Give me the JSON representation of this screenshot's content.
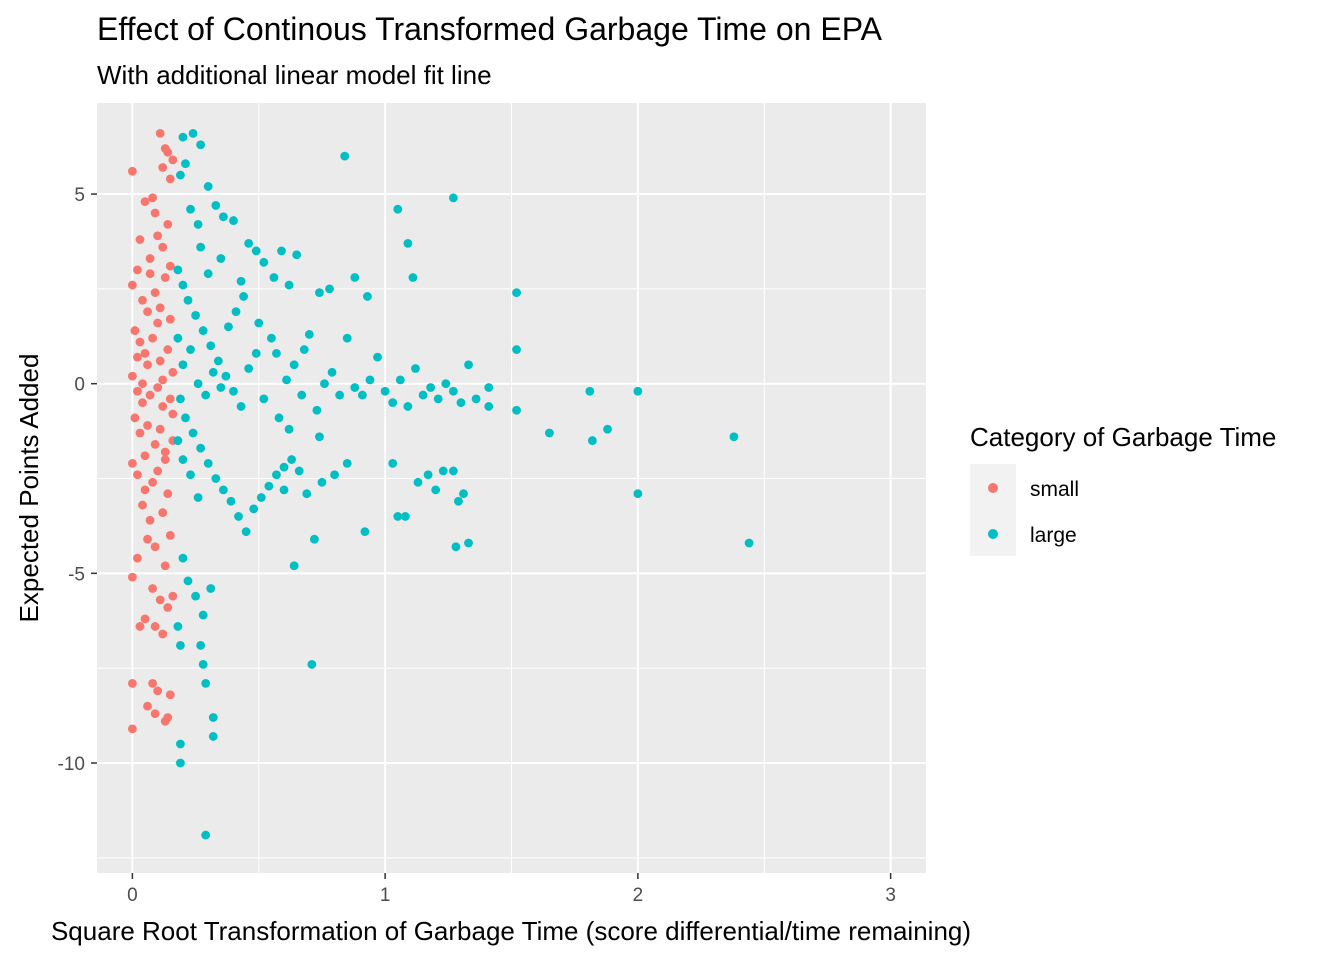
{
  "chart_data": {
    "type": "scatter",
    "title": "Effect of Continous Transformed Garbage Time on EPA",
    "subtitle": "With additional linear model fit line",
    "xlabel": "Square Root Transformation of Garbage Time (score differential/time remaining)",
    "ylabel": "Expected Points Added",
    "xlim": [
      -0.14,
      3.14
    ],
    "ylim": [
      -12.9,
      7.4
    ],
    "x_ticks": [
      0,
      1,
      2,
      3
    ],
    "x_tick_labels": [
      "0",
      "1",
      "2",
      "3"
    ],
    "y_ticks": [
      5,
      0,
      -5,
      -10
    ],
    "y_tick_labels": [
      "5",
      "0",
      "-5",
      "-10"
    ],
    "grid": true,
    "background": "#EBEBEB",
    "legend": {
      "title": "Category of Garbage Time",
      "position": "right",
      "entries": [
        {
          "label": "small",
          "color": "#F8766D"
        },
        {
          "label": "large",
          "color": "#00BFC4"
        }
      ]
    },
    "series": [
      {
        "name": "small",
        "color": "#F8766D",
        "points": [
          [
            0.0,
            5.6
          ],
          [
            0.05,
            4.8
          ],
          [
            0.09,
            4.5
          ],
          [
            0.11,
            6.6
          ],
          [
            0.13,
            6.2
          ],
          [
            0.14,
            6.1
          ],
          [
            0.12,
            5.7
          ],
          [
            0.16,
            5.9
          ],
          [
            0.15,
            5.4
          ],
          [
            0.08,
            4.9
          ],
          [
            0.03,
            3.8
          ],
          [
            0.07,
            3.3
          ],
          [
            0.02,
            3.0
          ],
          [
            0.1,
            3.9
          ],
          [
            0.14,
            4.2
          ],
          [
            0.12,
            3.6
          ],
          [
            0.0,
            2.6
          ],
          [
            0.04,
            2.2
          ],
          [
            0.06,
            1.9
          ],
          [
            0.09,
            2.4
          ],
          [
            0.13,
            2.8
          ],
          [
            0.15,
            1.7
          ],
          [
            0.01,
            1.4
          ],
          [
            0.03,
            1.1
          ],
          [
            0.05,
            0.8
          ],
          [
            0.08,
            1.2
          ],
          [
            0.11,
            0.6
          ],
          [
            0.14,
            0.9
          ],
          [
            0.16,
            0.3
          ],
          [
            0.0,
            0.2
          ],
          [
            0.02,
            -0.2
          ],
          [
            0.04,
            -0.5
          ],
          [
            0.07,
            -0.3
          ],
          [
            0.1,
            -0.1
          ],
          [
            0.12,
            -0.6
          ],
          [
            0.15,
            -0.4
          ],
          [
            0.01,
            -0.9
          ],
          [
            0.03,
            -1.3
          ],
          [
            0.06,
            -1.1
          ],
          [
            0.09,
            -1.6
          ],
          [
            0.11,
            -1.2
          ],
          [
            0.13,
            -1.8
          ],
          [
            0.16,
            -1.5
          ],
          [
            0.0,
            -2.1
          ],
          [
            0.02,
            -2.4
          ],
          [
            0.05,
            -1.9
          ],
          [
            0.08,
            -2.6
          ],
          [
            0.1,
            -2.3
          ],
          [
            0.14,
            -2.9
          ],
          [
            0.04,
            -3.2
          ],
          [
            0.07,
            -3.6
          ],
          [
            0.12,
            -3.4
          ],
          [
            0.15,
            -4.0
          ],
          [
            0.09,
            -4.3
          ],
          [
            0.02,
            -4.6
          ],
          [
            0.06,
            -4.1
          ],
          [
            0.13,
            -4.8
          ],
          [
            0.0,
            -5.1
          ],
          [
            0.08,
            -5.4
          ],
          [
            0.11,
            -5.7
          ],
          [
            0.14,
            -5.9
          ],
          [
            0.16,
            -5.6
          ],
          [
            0.05,
            -6.2
          ],
          [
            0.09,
            -6.4
          ],
          [
            0.12,
            -6.6
          ],
          [
            0.03,
            -6.4
          ],
          [
            0.0,
            -7.9
          ],
          [
            0.08,
            -7.9
          ],
          [
            0.1,
            -8.1
          ],
          [
            0.15,
            -8.2
          ],
          [
            0.06,
            -8.5
          ],
          [
            0.09,
            -8.7
          ],
          [
            0.13,
            -8.9
          ],
          [
            0.14,
            -8.8
          ],
          [
            0.0,
            -9.1
          ],
          [
            0.04,
            0.0
          ],
          [
            0.06,
            0.5
          ],
          [
            0.12,
            0.1
          ],
          [
            0.16,
            -0.8
          ],
          [
            0.1,
            1.6
          ],
          [
            0.07,
            2.9
          ],
          [
            0.15,
            3.1
          ],
          [
            0.02,
            0.7
          ],
          [
            0.13,
            -2.0
          ],
          [
            0.05,
            -2.8
          ],
          [
            0.11,
            2.0
          ]
        ]
      },
      {
        "name": "large",
        "color": "#00BFC4",
        "points": [
          [
            0.2,
            6.5
          ],
          [
            0.24,
            6.6
          ],
          [
            0.27,
            6.3
          ],
          [
            0.19,
            5.5
          ],
          [
            0.21,
            5.8
          ],
          [
            0.3,
            5.2
          ],
          [
            0.23,
            4.6
          ],
          [
            0.26,
            4.2
          ],
          [
            0.33,
            4.7
          ],
          [
            0.36,
            4.4
          ],
          [
            0.4,
            4.3
          ],
          [
            0.46,
            3.7
          ],
          [
            0.49,
            3.5
          ],
          [
            0.52,
            3.2
          ],
          [
            0.59,
            3.5
          ],
          [
            0.65,
            3.4
          ],
          [
            0.56,
            2.8
          ],
          [
            0.62,
            2.6
          ],
          [
            0.74,
            2.4
          ],
          [
            0.78,
            2.5
          ],
          [
            0.88,
            2.8
          ],
          [
            0.93,
            2.3
          ],
          [
            0.84,
            6.0
          ],
          [
            1.05,
            4.6
          ],
          [
            1.27,
            4.9
          ],
          [
            1.09,
            3.7
          ],
          [
            1.11,
            2.8
          ],
          [
            1.52,
            2.4
          ],
          [
            1.52,
            0.9
          ],
          [
            0.18,
            3.0
          ],
          [
            0.2,
            2.6
          ],
          [
            0.22,
            2.2
          ],
          [
            0.25,
            1.8
          ],
          [
            0.28,
            1.4
          ],
          [
            0.31,
            1.0
          ],
          [
            0.34,
            0.6
          ],
          [
            0.37,
            0.2
          ],
          [
            0.4,
            -0.2
          ],
          [
            0.43,
            -0.6
          ],
          [
            0.46,
            0.4
          ],
          [
            0.49,
            0.8
          ],
          [
            0.52,
            -0.4
          ],
          [
            0.55,
            1.2
          ],
          [
            0.58,
            -0.9
          ],
          [
            0.61,
            0.1
          ],
          [
            0.64,
            0.5
          ],
          [
            0.67,
            -0.3
          ],
          [
            0.7,
            1.3
          ],
          [
            0.73,
            -0.7
          ],
          [
            0.76,
            0.0
          ],
          [
            0.79,
            0.3
          ],
          [
            0.82,
            -0.3
          ],
          [
            0.85,
            1.2
          ],
          [
            0.88,
            -0.1
          ],
          [
            0.91,
            -0.3
          ],
          [
            0.94,
            0.1
          ],
          [
            0.97,
            0.7
          ],
          [
            1.0,
            -0.2
          ],
          [
            1.03,
            -0.5
          ],
          [
            1.06,
            0.1
          ],
          [
            1.09,
            -0.6
          ],
          [
            1.12,
            0.4
          ],
          [
            1.15,
            -0.3
          ],
          [
            1.18,
            -0.1
          ],
          [
            1.21,
            -0.4
          ],
          [
            1.24,
            0.0
          ],
          [
            1.27,
            -0.2
          ],
          [
            1.3,
            -0.5
          ],
          [
            1.33,
            0.5
          ],
          [
            1.36,
            -0.4
          ],
          [
            1.41,
            -0.1
          ],
          [
            1.41,
            -0.6
          ],
          [
            1.52,
            -0.7
          ],
          [
            1.81,
            -0.2
          ],
          [
            2.0,
            -0.2
          ],
          [
            1.82,
            -1.5
          ],
          [
            1.88,
            -1.2
          ],
          [
            2.38,
            -1.4
          ],
          [
            1.65,
            -1.3
          ],
          [
            0.19,
            -0.4
          ],
          [
            0.21,
            -0.9
          ],
          [
            0.24,
            -1.3
          ],
          [
            0.27,
            -1.7
          ],
          [
            0.3,
            -2.1
          ],
          [
            0.33,
            -2.5
          ],
          [
            0.36,
            -2.8
          ],
          [
            0.39,
            -3.1
          ],
          [
            0.42,
            -3.5
          ],
          [
            0.45,
            -3.9
          ],
          [
            0.48,
            -3.3
          ],
          [
            0.51,
            -3.0
          ],
          [
            0.54,
            -2.7
          ],
          [
            0.57,
            -2.4
          ],
          [
            0.6,
            -2.2
          ],
          [
            0.63,
            -2.0
          ],
          [
            0.66,
            -2.3
          ],
          [
            0.69,
            -2.9
          ],
          [
            0.72,
            -4.1
          ],
          [
            0.75,
            -2.6
          ],
          [
            0.8,
            -2.4
          ],
          [
            0.85,
            -2.1
          ],
          [
            0.92,
            -3.9
          ],
          [
            1.03,
            -2.1
          ],
          [
            1.05,
            -3.5
          ],
          [
            1.08,
            -3.5
          ],
          [
            1.13,
            -2.6
          ],
          [
            1.17,
            -2.4
          ],
          [
            1.2,
            -2.8
          ],
          [
            1.23,
            -2.3
          ],
          [
            1.27,
            -2.3
          ],
          [
            1.28,
            -4.3
          ],
          [
            1.33,
            -4.2
          ],
          [
            1.31,
            -2.9
          ],
          [
            1.29,
            -3.1
          ],
          [
            2.0,
            -2.9
          ],
          [
            2.44,
            -4.2
          ],
          [
            0.64,
            -4.8
          ],
          [
            0.71,
            -7.4
          ],
          [
            0.2,
            -4.6
          ],
          [
            0.22,
            -5.2
          ],
          [
            0.25,
            -5.6
          ],
          [
            0.28,
            -6.1
          ],
          [
            0.31,
            -5.4
          ],
          [
            0.18,
            -6.4
          ],
          [
            0.19,
            -6.9
          ],
          [
            0.27,
            -6.9
          ],
          [
            0.28,
            -7.4
          ],
          [
            0.29,
            -7.9
          ],
          [
            0.32,
            -8.8
          ],
          [
            0.32,
            -9.3
          ],
          [
            0.19,
            -9.5
          ],
          [
            0.19,
            -10.0
          ],
          [
            0.29,
            -11.9
          ],
          [
            0.2,
            0.5
          ],
          [
            0.23,
            0.9
          ],
          [
            0.26,
            0.0
          ],
          [
            0.29,
            -0.3
          ],
          [
            0.32,
            0.3
          ],
          [
            0.35,
            -0.1
          ],
          [
            0.38,
            1.5
          ],
          [
            0.41,
            1.9
          ],
          [
            0.44,
            2.3
          ],
          [
            0.2,
            -2.0
          ],
          [
            0.23,
            -2.4
          ],
          [
            0.26,
            -3.0
          ],
          [
            0.18,
            1.2
          ],
          [
            0.18,
            -1.5
          ],
          [
            0.3,
            2.9
          ],
          [
            0.35,
            3.3
          ],
          [
            0.27,
            3.6
          ],
          [
            0.43,
            2.7
          ],
          [
            0.5,
            1.6
          ],
          [
            0.57,
            0.8
          ],
          [
            0.62,
            -1.2
          ],
          [
            0.68,
            0.9
          ],
          [
            0.74,
            -1.4
          ],
          [
            0.6,
            -2.8
          ]
        ]
      }
    ]
  }
}
